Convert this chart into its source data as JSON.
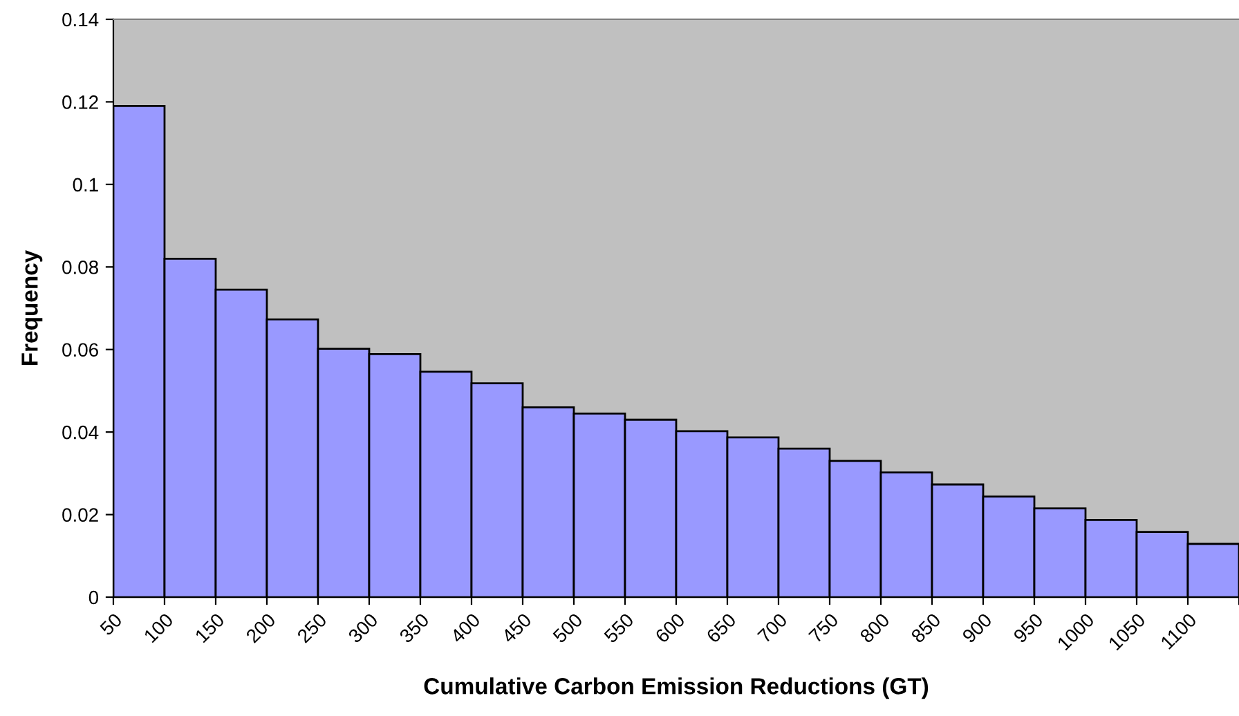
{
  "chart_data": {
    "type": "histogram",
    "xlabel": "Cumulative Carbon Emission Reductions (GT)",
    "ylabel": "Frequency",
    "bins": [
      50,
      100,
      150,
      200,
      250,
      300,
      350,
      400,
      450,
      500,
      550,
      600,
      650,
      700,
      750,
      800,
      850,
      900,
      950,
      1000,
      1050,
      1100,
      1150
    ],
    "values": [
      0.119,
      0.082,
      0.0745,
      0.0673,
      0.0602,
      0.0589,
      0.0546,
      0.0518,
      0.046,
      0.0445,
      0.043,
      0.0402,
      0.0387,
      0.036,
      0.033,
      0.0302,
      0.0273,
      0.0244,
      0.0215,
      0.0187,
      0.0158,
      0.0129
    ],
    "color": "#9999ff",
    "xlim": [
      50,
      1150
    ],
    "xticks": [
      50,
      100,
      150,
      200,
      250,
      300,
      350,
      400,
      450,
      500,
      550,
      600,
      650,
      700,
      750,
      800,
      850,
      900,
      950,
      1000,
      1050,
      1100,
      {
        "value": 1150,
        "label": null
      }
    ],
    "ylim": [
      0,
      0.14
    ],
    "yticks": [
      0,
      0.02,
      0.04,
      0.06,
      0.08,
      0.1,
      0.12,
      0.14
    ],
    "grid": false,
    "legend": false
  }
}
